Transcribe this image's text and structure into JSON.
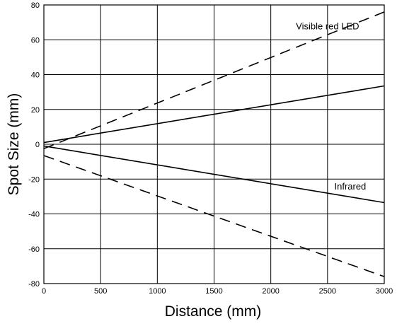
{
  "chart_data": {
    "type": "line",
    "title": "",
    "xlabel": "Distance (mm)",
    "ylabel": "Spot Size (mm)",
    "xlim": [
      0,
      3000
    ],
    "ylim": [
      -80,
      80
    ],
    "x_ticks": [
      0,
      500,
      1000,
      1500,
      2000,
      2500,
      3000
    ],
    "y_ticks": [
      80,
      60,
      40,
      20,
      0,
      -20,
      -40,
      -60,
      -80
    ],
    "grid": true,
    "series": [
      {
        "key": "visible_upper",
        "style": "dashed",
        "color": "#000000",
        "x": [
          0,
          3000
        ],
        "y": [
          -2.5,
          76
        ]
      },
      {
        "key": "visible_lower",
        "style": "dashed",
        "color": "#000000",
        "x": [
          0,
          3000
        ],
        "y": [
          -6.5,
          -76
        ]
      },
      {
        "key": "infrared_upper",
        "style": "solid",
        "color": "#000000",
        "x": [
          0,
          3000
        ],
        "y": [
          1,
          33.5
        ]
      },
      {
        "key": "infrared_lower",
        "style": "solid",
        "color": "#000000",
        "x": [
          0,
          3000
        ],
        "y": [
          -1,
          -33.5
        ]
      }
    ],
    "annotations": [
      {
        "key": "visible_label",
        "text": "Visible red LED",
        "x": 2500,
        "y": 66
      },
      {
        "key": "infrared_label",
        "text": "Infrared",
        "x": 2700,
        "y": -26
      }
    ]
  }
}
